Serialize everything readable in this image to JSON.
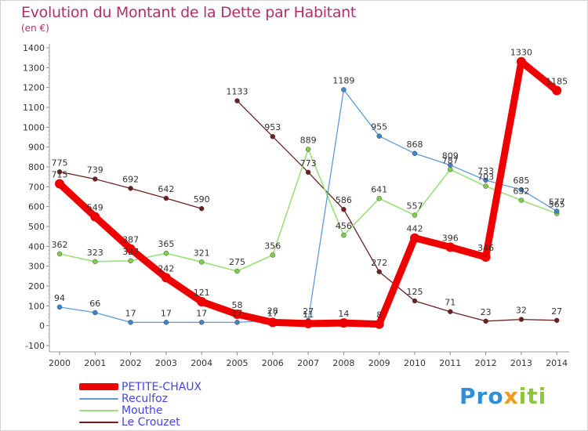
{
  "title": "Evolution du Montant de la Dette par Habitant",
  "unit_label": "(en €)",
  "colors": {
    "title": "#b0306a",
    "legend_text": "#4444ee",
    "axis": "#999999",
    "tick_text": "#333333",
    "value_text": "#333333"
  },
  "logo": {
    "part1": "Pro",
    "part2": "x",
    "part3": "iti"
  },
  "chart_data": {
    "type": "line",
    "title": "Evolution du Montant de la Dette par Habitant",
    "ylabel": "(en €)",
    "xlabel": "",
    "ylim": [
      -100,
      1400
    ],
    "yticks": [
      -100,
      0,
      100,
      200,
      300,
      400,
      500,
      600,
      700,
      800,
      900,
      1000,
      1100,
      1200,
      1300,
      1400
    ],
    "grid": false,
    "legend_position": "bottom-left",
    "categories": [
      "2000",
      "2001",
      "2002",
      "2003",
      "2004",
      "2005",
      "2006",
      "2007",
      "2008",
      "2009",
      "2010",
      "2011",
      "2012",
      "2013",
      "2014"
    ],
    "series": [
      {
        "name": "Le Crouzet",
        "color": "#6b1f1f",
        "marker": "#6b1f1f",
        "width": 1.3,
        "break_after_index": 4,
        "values": [
          775,
          739,
          692,
          642,
          590,
          1133,
          953,
          773,
          586,
          272,
          125,
          71,
          23,
          32,
          27
        ],
        "labels": [
          "775",
          "739",
          "692",
          "642",
          "590",
          "1133",
          "953",
          "773",
          "586",
          "272",
          "125",
          "71",
          "23",
          "32",
          "27"
        ]
      },
      {
        "name": "Mouthe",
        "color": "#9be07a",
        "marker": "#7ed04a",
        "width": 1.6,
        "break_after_index": null,
        "values": [
          362,
          323,
          327,
          365,
          321,
          275,
          356,
          889,
          456,
          641,
          557,
          787,
          703,
          632,
          565
        ],
        "labels": [
          "362",
          "323",
          "327",
          "365",
          "321",
          "275",
          "356",
          "889",
          "456",
          "641",
          "557",
          "787",
          "703",
          "632",
          "565"
        ]
      },
      {
        "name": "Reculfoz",
        "color": "#5b9bd5",
        "marker": "#3a86cf",
        "width": 1.3,
        "break_after_index": null,
        "values": [
          94,
          66,
          17,
          17,
          17,
          17,
          28,
          27,
          1189,
          955,
          868,
          809,
          733,
          685,
          577
        ],
        "labels": [
          "94",
          "66",
          "17",
          "17",
          "17",
          "17",
          "28",
          "27",
          "1189",
          "955",
          "868",
          "809",
          "733",
          "685",
          "577"
        ]
      },
      {
        "name": "PETITE-CHAUX",
        "color": "#ee0000",
        "marker": "#ee0000",
        "width": 9,
        "break_after_index": null,
        "values": [
          715,
          549,
          387,
          242,
          121,
          58,
          17,
          11,
          14,
          8,
          442,
          396,
          346,
          1330,
          1185
        ],
        "labels": [
          "715",
          "549",
          "387",
          "242",
          "121",
          "58",
          "17",
          "11",
          "14",
          "8",
          "442",
          "396",
          "346",
          "1330",
          "1185"
        ]
      }
    ]
  },
  "legend": [
    {
      "name": "PETITE-CHAUX",
      "color": "#ee0000"
    },
    {
      "name": "Reculfoz",
      "color": "#5b9bd5"
    },
    {
      "name": "Mouthe",
      "color": "#9be07a"
    },
    {
      "name": "Le Crouzet",
      "color": "#6b1f1f"
    }
  ]
}
